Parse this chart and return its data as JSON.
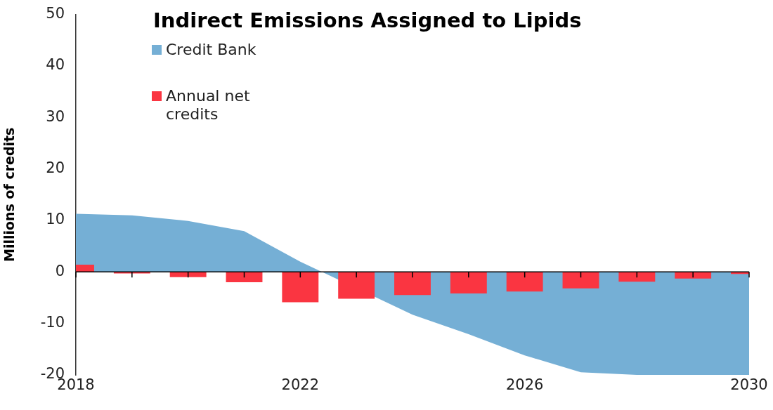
{
  "chart_data": {
    "type": "bar",
    "title": "Indirect Emissions Assigned to Lipids",
    "ylabel": "Millions of credits",
    "x": [
      2018,
      2019,
      2020,
      2021,
      2022,
      2023,
      2024,
      2025,
      2026,
      2027,
      2028,
      2029,
      2030
    ],
    "series": [
      {
        "name": "Credit Bank",
        "type": "area",
        "color": "#75afd5",
        "values": [
          11.3,
          11.0,
          9.9,
          7.9,
          2.0,
          null,
          -8.3,
          -12.1,
          -16.2,
          -19.5,
          -20,
          -20,
          -20
        ]
      },
      {
        "name": "Annual net credits",
        "color": "#fa3541",
        "values": [
          1.4,
          -0.3,
          -1.0,
          -2.0,
          -5.9,
          -5.2,
          -4.5,
          -4.2,
          -3.8,
          -3.2,
          -1.9,
          -1.3,
          -0.4
        ]
      }
    ],
    "xlim": [
      2018,
      2030
    ],
    "xticks": [
      2018,
      {
        "value": 2019,
        "label": null
      },
      {
        "value": 2020,
        "label": null
      },
      {
        "value": 2021,
        "label": null
      },
      2022,
      {
        "value": 2023,
        "label": null
      },
      {
        "value": 2024,
        "label": null
      },
      {
        "value": 2025,
        "label": null
      },
      2026,
      {
        "value": 2027,
        "label": null
      },
      {
        "value": 2028,
        "label": null
      },
      {
        "value": 2029,
        "label": null
      },
      2030
    ],
    "ylim": [
      -20,
      50
    ],
    "yticks": [
      -20,
      -10,
      0,
      10,
      20,
      30,
      40,
      50
    ],
    "ref_lines": [
      {
        "axis": "y",
        "value": 0,
        "color": "#000000"
      }
    ],
    "grid": false,
    "legend": "top left"
  }
}
